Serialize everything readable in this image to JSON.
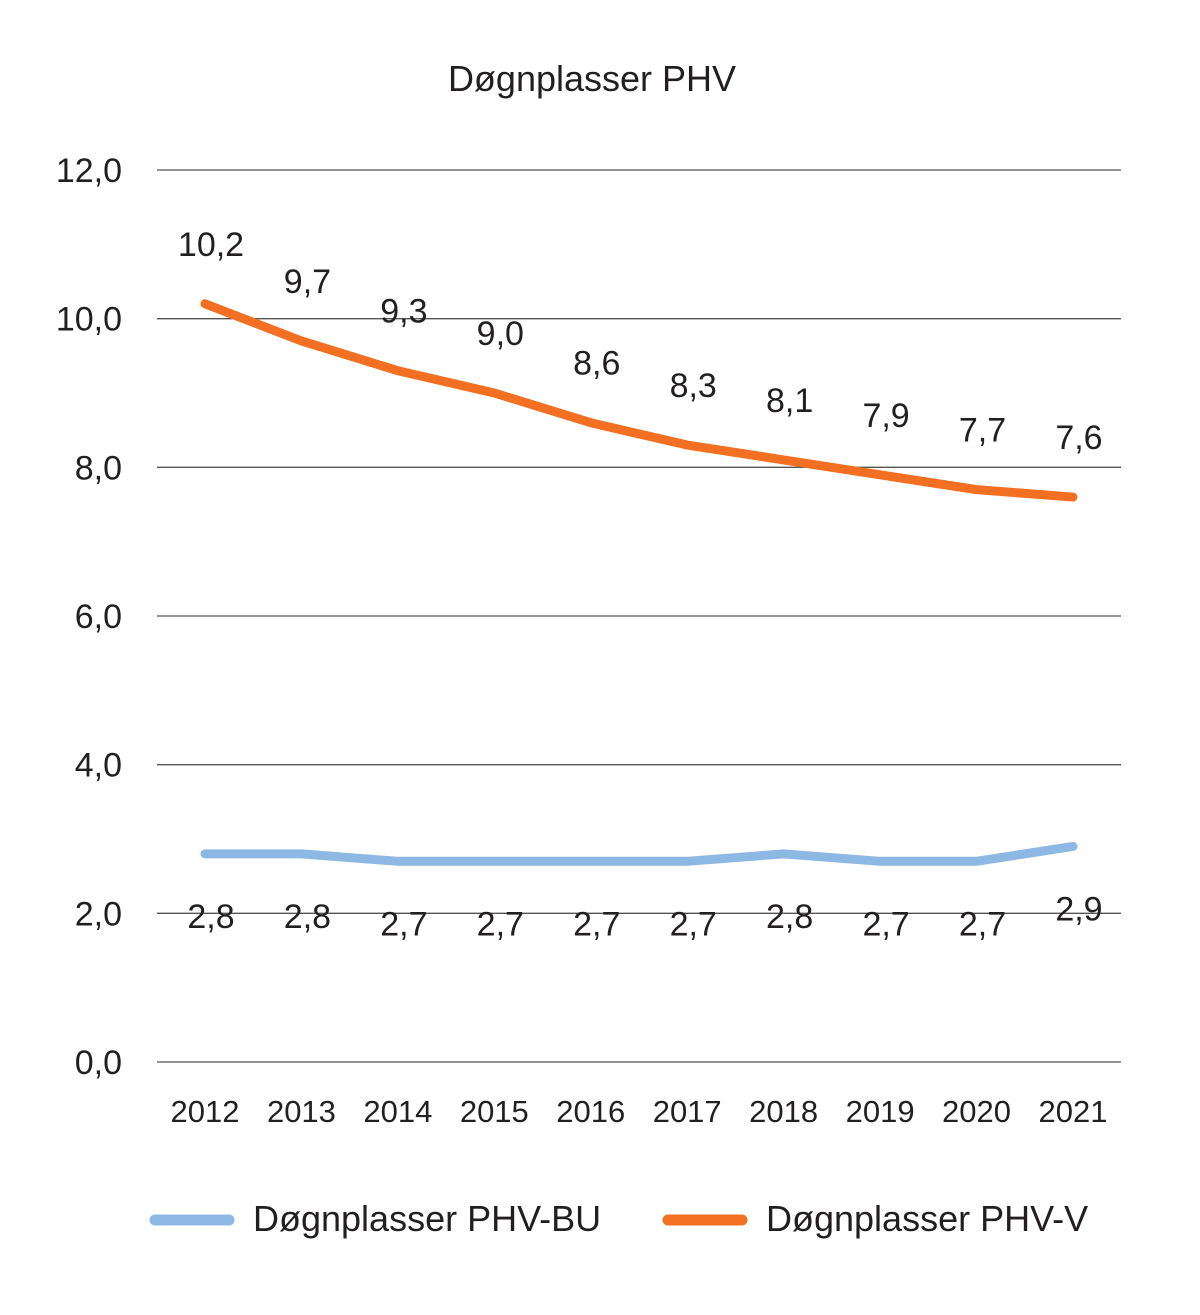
{
  "chart_data": {
    "type": "line",
    "title": "Døgnplasser PHV",
    "xlabel": "",
    "ylabel": "",
    "categories": [
      "2012",
      "2013",
      "2014",
      "2015",
      "2016",
      "2017",
      "2018",
      "2019",
      "2020",
      "2021"
    ],
    "ylim": [
      0,
      12
    ],
    "yticks": [
      "0,0",
      "2,0",
      "4,0",
      "6,0",
      "8,0",
      "10,0",
      "12,0"
    ],
    "grid": true,
    "legend_position": "bottom",
    "series": [
      {
        "name": "Døgnplasser PHV-BU",
        "color": "#8db8e4",
        "values": [
          2.8,
          2.8,
          2.7,
          2.7,
          2.7,
          2.7,
          2.8,
          2.7,
          2.7,
          2.9
        ],
        "labels": [
          "2,8",
          "2,8",
          "2,7",
          "2,7",
          "2,7",
          "2,7",
          "2,8",
          "2,7",
          "2,7",
          "2,9"
        ],
        "label_position": "below"
      },
      {
        "name": "Døgnplasser PHV-V",
        "color": "#f36f21",
        "values": [
          10.2,
          9.7,
          9.3,
          9.0,
          8.6,
          8.3,
          8.1,
          7.9,
          7.7,
          7.6
        ],
        "labels": [
          "10,2",
          "9,7",
          "9,3",
          "9,0",
          "8,6",
          "8,3",
          "8,1",
          "7,9",
          "7,7",
          "7,6"
        ],
        "label_position": "above"
      }
    ]
  }
}
